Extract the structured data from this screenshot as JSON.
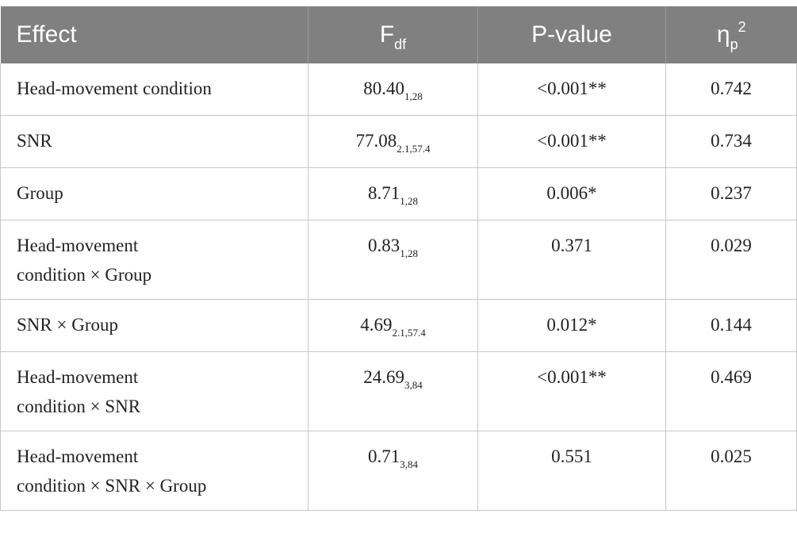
{
  "header": {
    "effect": "Effect",
    "f_main": "F",
    "f_sub": "df",
    "pvalue": "P-value",
    "eta_main": "η",
    "eta_sub": "p",
    "eta_sup": "2"
  },
  "rows": [
    {
      "effect_line1": "Head-movement condition",
      "effect_line2": "",
      "f": "80.40",
      "df": "1,28",
      "p": "<0.001**",
      "eta": "0.742"
    },
    {
      "effect_line1": "SNR",
      "effect_line2": "",
      "f": "77.08",
      "df": "2.1,57.4",
      "p": "<0.001**",
      "eta": "0.734"
    },
    {
      "effect_line1": "Group",
      "effect_line2": "",
      "f": "8.71",
      "df": "1,28",
      "p": "0.006*",
      "eta": "0.237"
    },
    {
      "effect_line1": "Head-movement",
      "effect_line2": "condition × Group",
      "f": "0.83",
      "df": "1,28",
      "p": "0.371",
      "eta": "0.029"
    },
    {
      "effect_line1": "SNR × Group",
      "effect_line2": "",
      "f": "4.69",
      "df": "2.1,57.4",
      "p": "0.012*",
      "eta": "0.144"
    },
    {
      "effect_line1": "Head-movement",
      "effect_line2": "condition × SNR",
      "f": "24.69",
      "df": "3,84",
      "p": "<0.001**",
      "eta": "0.469"
    },
    {
      "effect_line1": "Head-movement",
      "effect_line2": "condition × SNR × Group",
      "f": "0.71",
      "df": "3,84",
      "p": "0.551",
      "eta": "0.025"
    }
  ]
}
